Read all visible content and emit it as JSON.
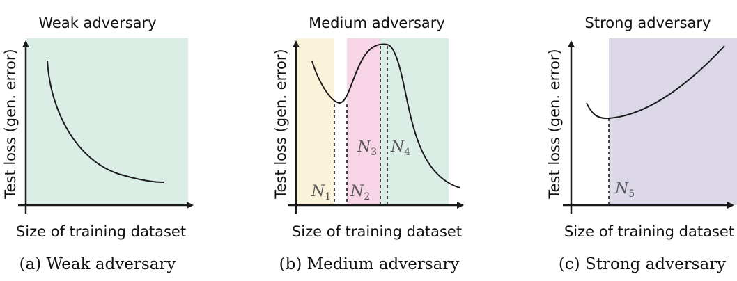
{
  "colors": {
    "weak_region": "#dbeee6",
    "medium_region_1": "#fbf3d9",
    "medium_region_2": "#f7d4e6",
    "medium_region_3": "#dbeee6",
    "strong_region": "#dcd8e8",
    "curve": "#1a1a1a",
    "label_gray": "#555555"
  },
  "panels": [
    {
      "title": "Weak adversary",
      "ylabel": "Test loss (gen. error)",
      "xlabel": "Size of training dataset",
      "caption": "(a) Weak adversary"
    },
    {
      "title": "Medium adversary",
      "ylabel": "Test loss (gen. error)",
      "xlabel": "Size of training dataset",
      "caption": "(b) Medium adversary",
      "markers": [
        {
          "sym": "N",
          "sub": "1"
        },
        {
          "sym": "N",
          "sub": "2"
        },
        {
          "sym": "N",
          "sub": "3"
        },
        {
          "sym": "N",
          "sub": "4"
        }
      ]
    },
    {
      "title": "Strong adversary",
      "ylabel": "Test loss (gen. error)",
      "xlabel": "Size of training dataset",
      "caption": "(c) Strong adversary",
      "markers": [
        {
          "sym": "N",
          "sub": "5"
        }
      ]
    }
  ]
}
